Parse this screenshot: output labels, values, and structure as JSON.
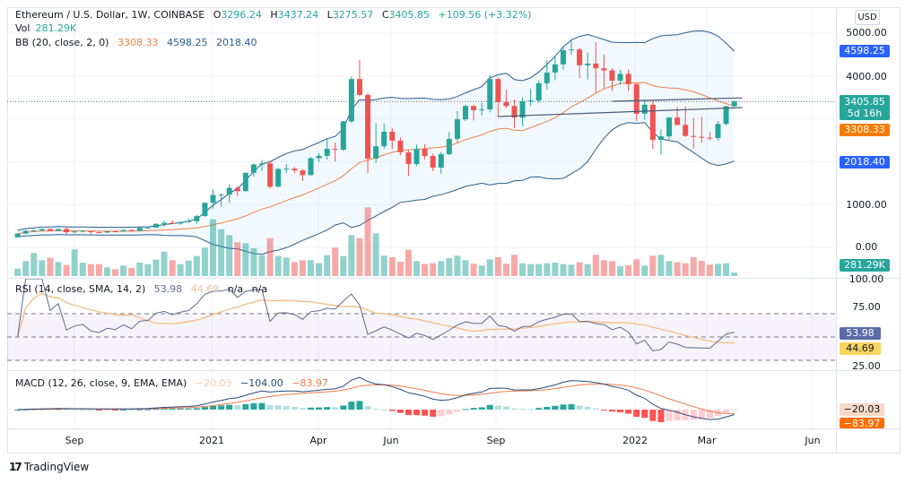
{
  "header": {
    "symbol": "Ethereum / U.S. Dollar, 1W, COINBASE",
    "o_label": "O",
    "o": "3296.24",
    "h_label": "H",
    "h": "3437.24",
    "l_label": "L",
    "l": "3275.57",
    "c_label": "C",
    "c": "3405.85",
    "change": "+109.56 (+3.32%)",
    "vol_label": "Vol",
    "vol": "281.29K",
    "bb_label": "BB (20, close, 2, 0)",
    "bb_basis": "3308.33",
    "bb_upper": "4598.25",
    "bb_lower": "2018.40"
  },
  "rsi_legend": {
    "label": "RSI (14, close, SMA, 14, 2)",
    "rsi": "53.98",
    "sma": "44.69",
    "na1": "n/a",
    "na2": "n/a"
  },
  "macd_legend": {
    "label": "MACD (12, 26, close, 9, EMA, EMA)",
    "hist": "−20.03",
    "macd": "−104.00",
    "signal": "−83.97"
  },
  "price_axis": {
    "currency": "USD",
    "ticks": [
      "5000.00",
      "4000.00",
      "1000.00",
      "0.00"
    ],
    "badges": {
      "bb_upper": "4598.25",
      "last": "3405.85",
      "countdown": "5d 16h",
      "bb_basis": "3308.33",
      "bb_lower": "2018.40",
      "volume": "281.29K"
    }
  },
  "rsi_axis": {
    "ticks": [
      "100.00",
      "75.00",
      "25.00"
    ],
    "badges": {
      "rsi": "53.98",
      "sma": "44.69"
    }
  },
  "macd_axis": {
    "badges": {
      "hist": "−20.03",
      "signal": "−83.97"
    }
  },
  "time_axis": {
    "labels": [
      "Sep",
      "2021",
      "Apr",
      "Jun",
      "Sep",
      "2022",
      "Mar",
      "Jun"
    ]
  },
  "branding": {
    "logo": "TradingView"
  },
  "colors": {
    "up": "#26a69a",
    "down": "#ef5350",
    "bb_band": "#2a5d8f",
    "bb_basis": "#f07f47",
    "rsi": "#5d6a8f",
    "rsi_sma": "#f5c28f",
    "macd": "#2a4a7a",
    "signal": "#ef7a4a",
    "badge_blue": "#2962ff",
    "badge_orange": "#f57c00"
  },
  "chart_data": {
    "type": "candlestick",
    "title": "Ethereum / U.S. Dollar, 1W, COINBASE",
    "columns": [
      "date",
      "open",
      "high",
      "low",
      "close",
      "volume_k"
    ],
    "ylim": [
      0,
      5000
    ],
    "rsi_levels": [
      70,
      50,
      30
    ],
    "rows": [
      [
        "2020-07-20",
        236,
        335,
        230,
        321,
        583
      ],
      [
        "2020-07-27",
        321,
        415,
        305,
        386,
        1167
      ],
      [
        "2020-08-03",
        386,
        405,
        360,
        395,
        1797
      ],
      [
        "2020-08-10",
        395,
        445,
        375,
        428,
        1237
      ],
      [
        "2020-08-17",
        428,
        440,
        375,
        388,
        1423
      ],
      [
        "2020-08-24",
        388,
        440,
        380,
        428,
        1097
      ],
      [
        "2020-08-31",
        428,
        488,
        310,
        353,
        863
      ],
      [
        "2020-09-07",
        353,
        380,
        330,
        374,
        2077
      ],
      [
        "2020-09-14",
        374,
        395,
        355,
        385,
        1050
      ],
      [
        "2020-09-21",
        385,
        390,
        310,
        355,
        933
      ],
      [
        "2020-09-28",
        355,
        365,
        335,
        346,
        933
      ],
      [
        "2020-10-05",
        346,
        380,
        340,
        375,
        677
      ],
      [
        "2020-10-12",
        375,
        395,
        360,
        368,
        537
      ],
      [
        "2020-10-19",
        368,
        420,
        365,
        406,
        817
      ],
      [
        "2020-10-26",
        406,
        415,
        370,
        382,
        630
      ],
      [
        "2020-11-02",
        382,
        470,
        375,
        454,
        1050
      ],
      [
        "2020-11-09",
        454,
        475,
        440,
        461,
        933
      ],
      [
        "2020-11-16",
        461,
        560,
        455,
        549,
        1283
      ],
      [
        "2020-11-23",
        549,
        620,
        480,
        575,
        1913
      ],
      [
        "2020-11-30",
        575,
        635,
        540,
        556,
        1237
      ],
      [
        "2020-12-07",
        556,
        600,
        530,
        590,
        933
      ],
      [
        "2020-12-14",
        590,
        680,
        575,
        611,
        1213
      ],
      [
        "2020-12-21",
        611,
        760,
        550,
        730,
        1563
      ],
      [
        "2020-12-28",
        730,
        1050,
        720,
        1041,
        2217
      ],
      [
        "2021-01-04",
        1041,
        1350,
        900,
        1223,
        4433
      ],
      [
        "2021-01-11",
        1223,
        1260,
        955,
        1231,
        3663
      ],
      [
        "2021-01-18",
        1231,
        1475,
        1040,
        1390,
        3197
      ],
      [
        "2021-01-25",
        1390,
        1420,
        1200,
        1313,
        2637
      ],
      [
        "2021-02-01",
        1313,
        1750,
        1300,
        1740,
        2567
      ],
      [
        "2021-02-08",
        1740,
        1960,
        1650,
        1935,
        2170
      ],
      [
        "2021-02-15",
        1935,
        2040,
        1780,
        1960,
        1633
      ],
      [
        "2021-02-22",
        1960,
        2030,
        1370,
        1416,
        2963
      ],
      [
        "2021-03-01",
        1416,
        1850,
        1410,
        1832,
        1563
      ],
      [
        "2021-03-08",
        1832,
        1940,
        1730,
        1836,
        1447
      ],
      [
        "2021-03-15",
        1836,
        1880,
        1730,
        1796,
        1097
      ],
      [
        "2021-03-22",
        1796,
        1830,
        1550,
        1686,
        1237
      ],
      [
        "2021-03-29",
        1686,
        2110,
        1680,
        2081,
        1237
      ],
      [
        "2021-04-05",
        2081,
        2200,
        1990,
        2136,
        1003
      ],
      [
        "2021-04-12",
        2136,
        2550,
        2050,
        2300,
        1633
      ],
      [
        "2021-04-19",
        2300,
        2450,
        2000,
        2280,
        2217
      ],
      [
        "2021-04-26",
        2280,
        2950,
        2250,
        2940,
        1563
      ],
      [
        "2021-05-03",
        2940,
        3990,
        2910,
        3930,
        3197
      ],
      [
        "2021-05-10",
        3930,
        4370,
        3530,
        3560,
        2963
      ],
      [
        "2021-05-17",
        3560,
        3600,
        1730,
        2070,
        5367
      ],
      [
        "2021-05-24",
        2070,
        2900,
        1970,
        2360,
        3337
      ],
      [
        "2021-05-31",
        2360,
        2890,
        2300,
        2700,
        1587
      ],
      [
        "2021-06-07",
        2700,
        2790,
        2300,
        2490,
        1470
      ],
      [
        "2021-06-14",
        2490,
        2570,
        2150,
        2220,
        1120
      ],
      [
        "2021-06-21",
        2220,
        2280,
        1670,
        1945,
        2053
      ],
      [
        "2021-06-28",
        1945,
        2400,
        1900,
        2300,
        1167
      ],
      [
        "2021-07-05",
        2300,
        2410,
        2050,
        2134,
        933
      ],
      [
        "2021-07-12",
        2134,
        2190,
        1780,
        1860,
        1003
      ],
      [
        "2021-07-19",
        1860,
        2230,
        1720,
        2175,
        1167
      ],
      [
        "2021-07-26",
        2175,
        2700,
        2150,
        2530,
        1400
      ],
      [
        "2021-08-02",
        2530,
        3180,
        2450,
        2990,
        1587
      ],
      [
        "2021-08-09",
        2990,
        3330,
        2950,
        3300,
        1237
      ],
      [
        "2021-08-16",
        3300,
        3330,
        2960,
        3200,
        957
      ],
      [
        "2021-08-23",
        3200,
        3380,
        3080,
        3220,
        817
      ],
      [
        "2021-08-30",
        3220,
        4030,
        3150,
        3930,
        1307
      ],
      [
        "2021-09-06",
        3930,
        3970,
        3030,
        3390,
        1470
      ],
      [
        "2021-09-13",
        3390,
        3680,
        3250,
        3300,
        957
      ],
      [
        "2021-09-20",
        3300,
        3450,
        2780,
        3030,
        1657
      ],
      [
        "2021-09-27",
        3030,
        3500,
        2830,
        3410,
        1003
      ],
      [
        "2021-10-04",
        3410,
        3700,
        3300,
        3430,
        933
      ],
      [
        "2021-10-11",
        3430,
        3900,
        3380,
        3830,
        933
      ],
      [
        "2021-10-18",
        3830,
        4380,
        3680,
        4080,
        1003
      ],
      [
        "2021-10-25",
        4080,
        4460,
        3900,
        4270,
        1050
      ],
      [
        "2021-11-01",
        4270,
        4660,
        4150,
        4600,
        933
      ],
      [
        "2021-11-08",
        4600,
        4870,
        4500,
        4620,
        887
      ],
      [
        "2021-11-15",
        4620,
        4660,
        3950,
        4250,
        1073
      ],
      [
        "2021-11-22",
        4250,
        4550,
        3920,
        4290,
        933
      ],
      [
        "2021-11-29",
        4290,
        4790,
        3600,
        4180,
        1657
      ],
      [
        "2021-12-06",
        4180,
        4500,
        3700,
        4130,
        1237
      ],
      [
        "2021-12-13",
        4130,
        4180,
        3650,
        3890,
        1167
      ],
      [
        "2021-12-20",
        3890,
        4150,
        3800,
        4050,
        770
      ],
      [
        "2021-12-27",
        4050,
        4150,
        3650,
        3810,
        840
      ],
      [
        "2022-01-03",
        3810,
        3840,
        2950,
        3120,
        1307
      ],
      [
        "2022-01-10",
        3120,
        3450,
        2980,
        3330,
        817
      ],
      [
        "2022-01-17",
        3330,
        3420,
        2300,
        2510,
        1587
      ],
      [
        "2022-01-24",
        2510,
        2750,
        2160,
        2590,
        1657
      ],
      [
        "2022-01-31",
        2590,
        3050,
        2500,
        3030,
        1167
      ],
      [
        "2022-02-07",
        3030,
        3280,
        2850,
        2860,
        1073
      ],
      [
        "2022-02-14",
        2860,
        3290,
        2580,
        2600,
        1003
      ],
      [
        "2022-02-21",
        2600,
        3010,
        2300,
        2580,
        1470
      ],
      [
        "2022-02-28",
        2580,
        3050,
        2450,
        2560,
        1190
      ],
      [
        "2022-03-07",
        2560,
        2700,
        2500,
        2550,
        887
      ],
      [
        "2022-03-14",
        2550,
        2950,
        2500,
        2880,
        957
      ],
      [
        "2022-03-21",
        2880,
        3300,
        2850,
        3296.24,
        1003
      ],
      [
        "2022-03-28",
        3296.24,
        3437.24,
        3275.57,
        3405.85,
        281.29
      ]
    ],
    "drawings": [
      {
        "type": "trendline",
        "from": [
          "2021-09-06",
          3054
        ],
        "to": [
          "2022-04-04",
          3263
        ]
      },
      {
        "type": "trendline",
        "from": [
          "2021-12-13",
          3410
        ],
        "to": [
          "2022-04-04",
          3490
        ]
      }
    ]
  }
}
